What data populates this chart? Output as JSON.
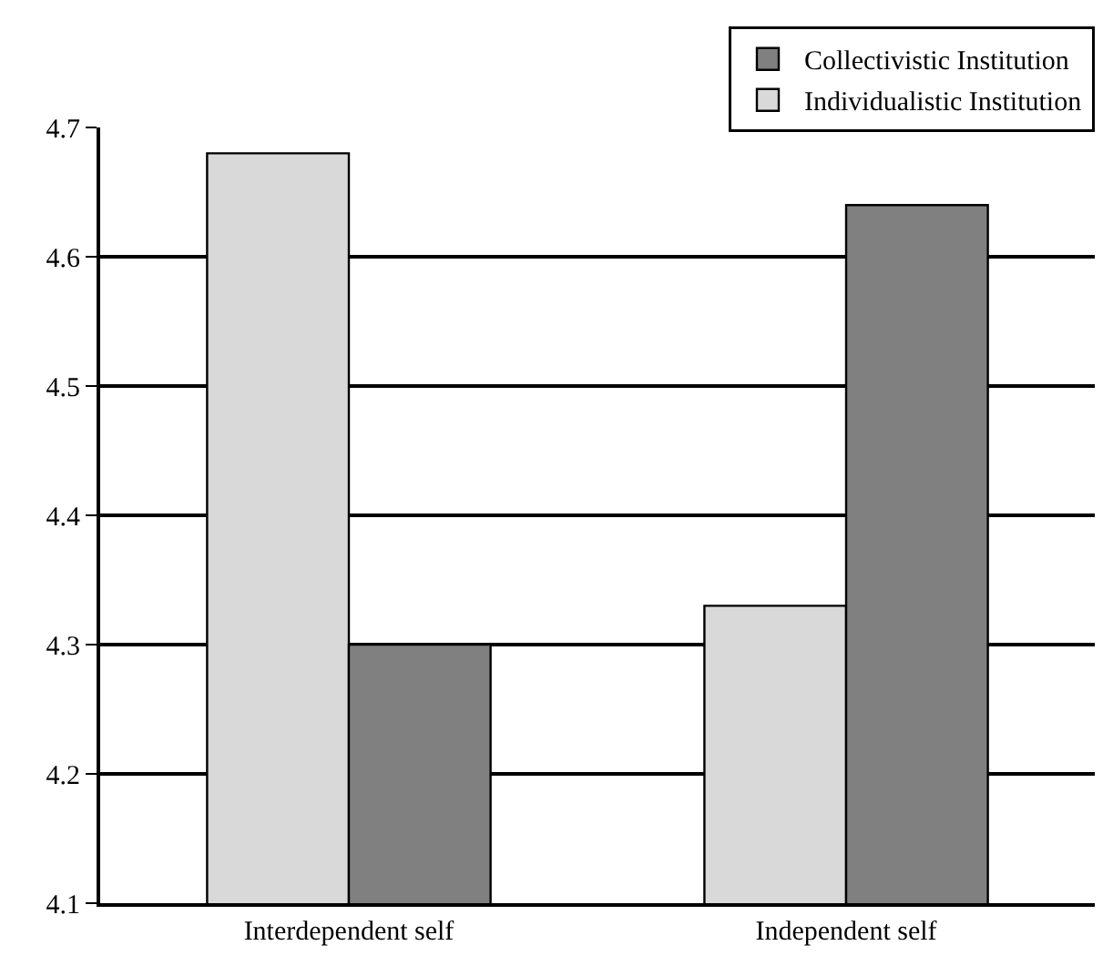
{
  "chart_data": {
    "type": "bar",
    "categories": [
      "Interdependent self",
      "Independent self"
    ],
    "series": [
      {
        "name": "Individualistic Institution",
        "color": "#d9d9d9",
        "values": [
          4.68,
          4.33
        ]
      },
      {
        "name": "Collectivistic Institution",
        "color": "#808080",
        "values": [
          4.3,
          4.64
        ]
      }
    ],
    "ylim": [
      4.1,
      4.7
    ],
    "yticks": [
      4.1,
      4.2,
      4.3,
      4.4,
      4.5,
      4.6,
      4.7
    ],
    "grid": "y",
    "legend": "top right"
  }
}
